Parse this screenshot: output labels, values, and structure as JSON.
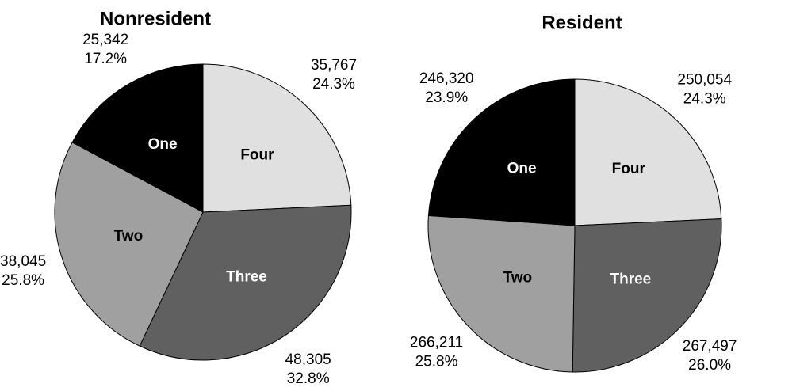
{
  "chart_data": [
    {
      "type": "pie",
      "title": "Nonresident",
      "categories": [
        "Four",
        "Three",
        "Two",
        "One"
      ],
      "values": [
        35767,
        48305,
        38045,
        25342
      ],
      "value_labels": [
        "35,767",
        "48,305",
        "38,045",
        "25,342"
      ],
      "percents": [
        24.3,
        32.8,
        25.8,
        17.2
      ],
      "percent_labels": [
        "24.3%",
        "32.8%",
        "25.8%",
        "17.2%"
      ],
      "colors": [
        "#e0e0e0",
        "#606060",
        "#a0a0a0",
        "#000000"
      ],
      "label_colors": [
        "#000000",
        "#ffffff",
        "#000000",
        "#ffffff"
      ]
    },
    {
      "type": "pie",
      "title": "Resident",
      "categories": [
        "Four",
        "Three",
        "Two",
        "One"
      ],
      "values": [
        250054,
        267497,
        266211,
        246320
      ],
      "value_labels": [
        "250,054",
        "267,497",
        "266,211",
        "246,320"
      ],
      "percents": [
        24.3,
        26.0,
        25.8,
        23.9
      ],
      "percent_labels": [
        "24.3%",
        "26.0%",
        "25.8%",
        "23.9%"
      ],
      "colors": [
        "#e0e0e0",
        "#606060",
        "#a0a0a0",
        "#000000"
      ],
      "label_colors": [
        "#000000",
        "#ffffff",
        "#000000",
        "#ffffff"
      ]
    }
  ]
}
